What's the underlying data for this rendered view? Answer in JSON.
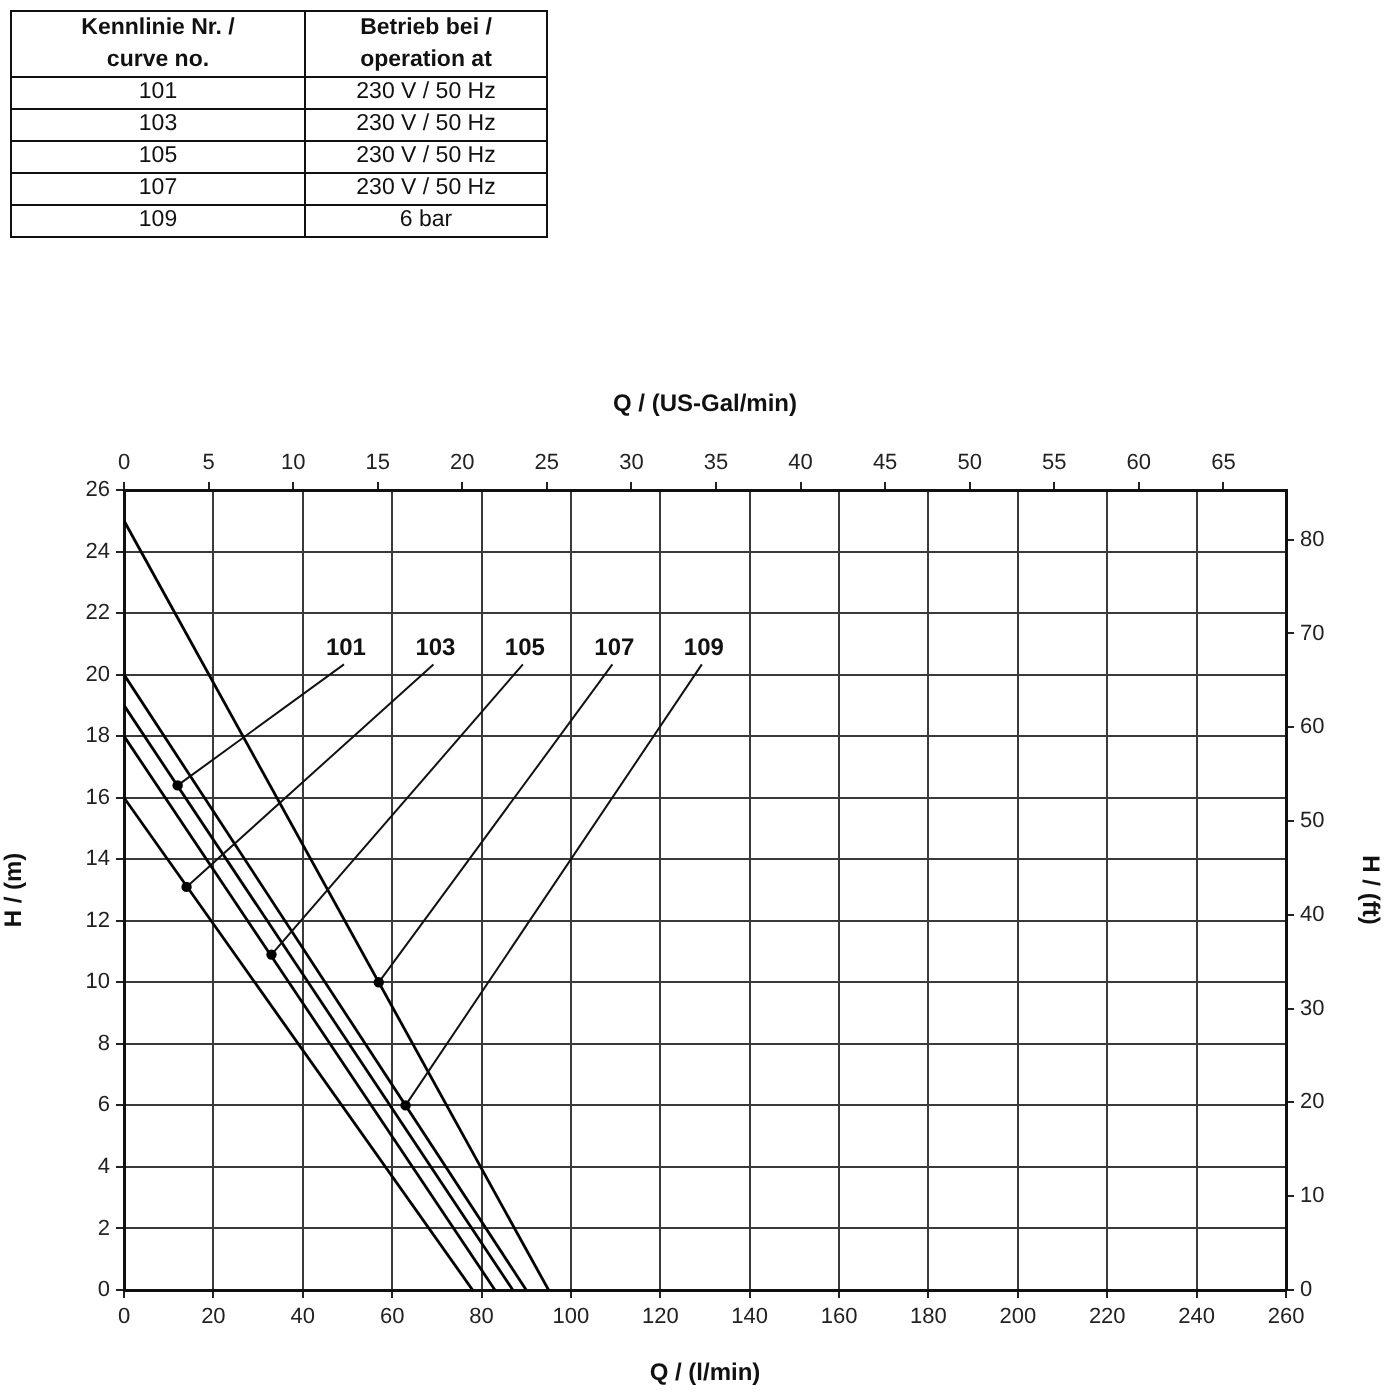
{
  "chart_data": {
    "type": "line",
    "xlabel": "Q / (l/min)",
    "x2label": "Q / (US-Gal/min)",
    "ylabel": "H / (m)",
    "y2label": "H / (ft)",
    "xlim": [
      0,
      260
    ],
    "xticks": [
      0,
      20,
      40,
      60,
      80,
      100,
      120,
      140,
      160,
      180,
      200,
      220,
      240,
      260
    ],
    "x2lim": [
      0,
      68.7
    ],
    "x2ticks": [
      0,
      5,
      10,
      15,
      20,
      25,
      30,
      35,
      40,
      45,
      50,
      55,
      60,
      65
    ],
    "ylim": [
      0,
      26
    ],
    "yticks": [
      0,
      2,
      4,
      6,
      8,
      10,
      12,
      14,
      16,
      18,
      20,
      22,
      24,
      26
    ],
    "y2lim": [
      0,
      85.3
    ],
    "y2ticks": [
      0,
      10,
      20,
      30,
      40,
      50,
      60,
      70,
      80
    ],
    "grid": true,
    "series": [
      {
        "color": "#000000",
        "x": [
          0,
          87
        ],
        "values": [
          19,
          0
        ]
      },
      {
        "color": "#000000",
        "x": [
          0,
          78
        ],
        "values": [
          16,
          0
        ]
      },
      {
        "color": "#000000",
        "x": [
          0,
          83
        ],
        "values": [
          18,
          0
        ]
      },
      {
        "color": "#000000",
        "x": [
          0,
          95
        ],
        "values": [
          25,
          0
        ]
      },
      {
        "color": "#000000",
        "x": [
          0,
          90
        ],
        "values": [
          20,
          0
        ]
      }
    ],
    "annotations": [
      "Kennlinie Nr. /\ncurve no.",
      "Betrieb bei /\noperation at",
      "101",
      "230 V / 50 Hz",
      "103",
      "230 V / 50 Hz",
      "105",
      "230 V / 50 Hz",
      "107",
      "230 V / 50 Hz",
      "109",
      "6 bar",
      {
        "text": "101",
        "x": 12,
        "y": 16.4
      },
      {
        "text": "103",
        "x": 14,
        "y": 13.1
      },
      {
        "text": "105",
        "x": 33,
        "y": 10.9
      },
      {
        "text": "107",
        "x": 57,
        "y": 10
      },
      {
        "text": "109",
        "x": 63,
        "y": 6
      }
    ]
  }
}
